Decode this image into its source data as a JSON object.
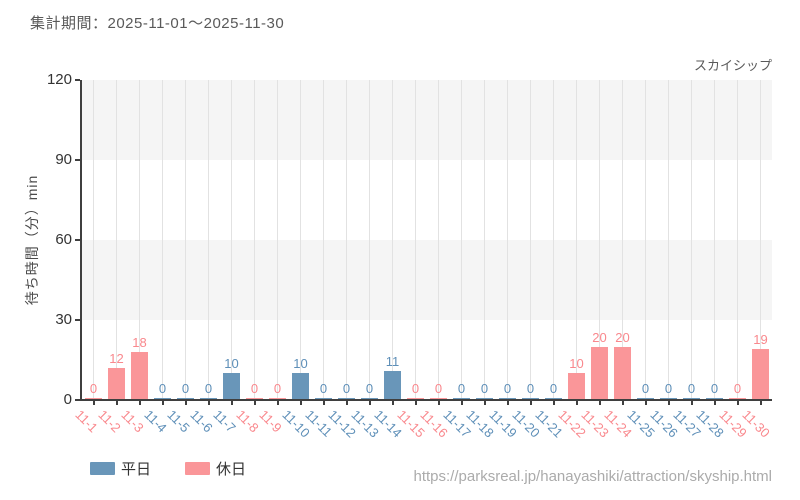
{
  "header": {
    "title": "集計期間：2025-11-01～2025-11-30",
    "attraction": "スカイシップ"
  },
  "chart_data": {
    "type": "bar",
    "title": "スカイシップ",
    "subtitle": "集計期間：2025-11-01～2025-11-30",
    "xlabel": "",
    "ylabel": "待ち時間（分）min",
    "ylim": [
      0,
      120
    ],
    "yticks": [
      0,
      30,
      60,
      90,
      120
    ],
    "grid": "vertical-light, alternating horizontal bands",
    "legend_position": "bottom-left",
    "categories": [
      "11-1",
      "11-2",
      "11-3",
      "11-4",
      "11-5",
      "11-6",
      "11-7",
      "11-8",
      "11-9",
      "11-10",
      "11-11",
      "11-12",
      "11-13",
      "11-14",
      "11-15",
      "11-16",
      "11-17",
      "11-18",
      "11-19",
      "11-20",
      "11-21",
      "11-22",
      "11-23",
      "11-24",
      "11-25",
      "11-26",
      "11-27",
      "11-28",
      "11-29",
      "11-30"
    ],
    "values": [
      0,
      12,
      18,
      0,
      0,
      0,
      10,
      0,
      0,
      10,
      0,
      0,
      0,
      11,
      0,
      0,
      0,
      0,
      0,
      0,
      0,
      10,
      20,
      20,
      0,
      0,
      0,
      0,
      0,
      19
    ],
    "day_types": [
      "holiday",
      "holiday",
      "holiday",
      "weekday",
      "weekday",
      "weekday",
      "weekday",
      "holiday",
      "holiday",
      "weekday",
      "weekday",
      "weekday",
      "weekday",
      "weekday",
      "holiday",
      "holiday",
      "weekday",
      "weekday",
      "weekday",
      "weekday",
      "weekday",
      "holiday",
      "holiday",
      "holiday",
      "weekday",
      "weekday",
      "weekday",
      "weekday",
      "holiday",
      "holiday"
    ],
    "colors": {
      "weekday": "#6996b9",
      "holiday": "#fa9699",
      "weekday_text": "#5e8fb8",
      "holiday_text": "#f9888d"
    },
    "legend": [
      {
        "label": "平日",
        "color": "#6996b9"
      },
      {
        "label": "休日",
        "color": "#fa9699"
      }
    ]
  },
  "footer": {
    "url": "https://parksreal.jp/hanayashiki/attraction/skyship.html"
  }
}
